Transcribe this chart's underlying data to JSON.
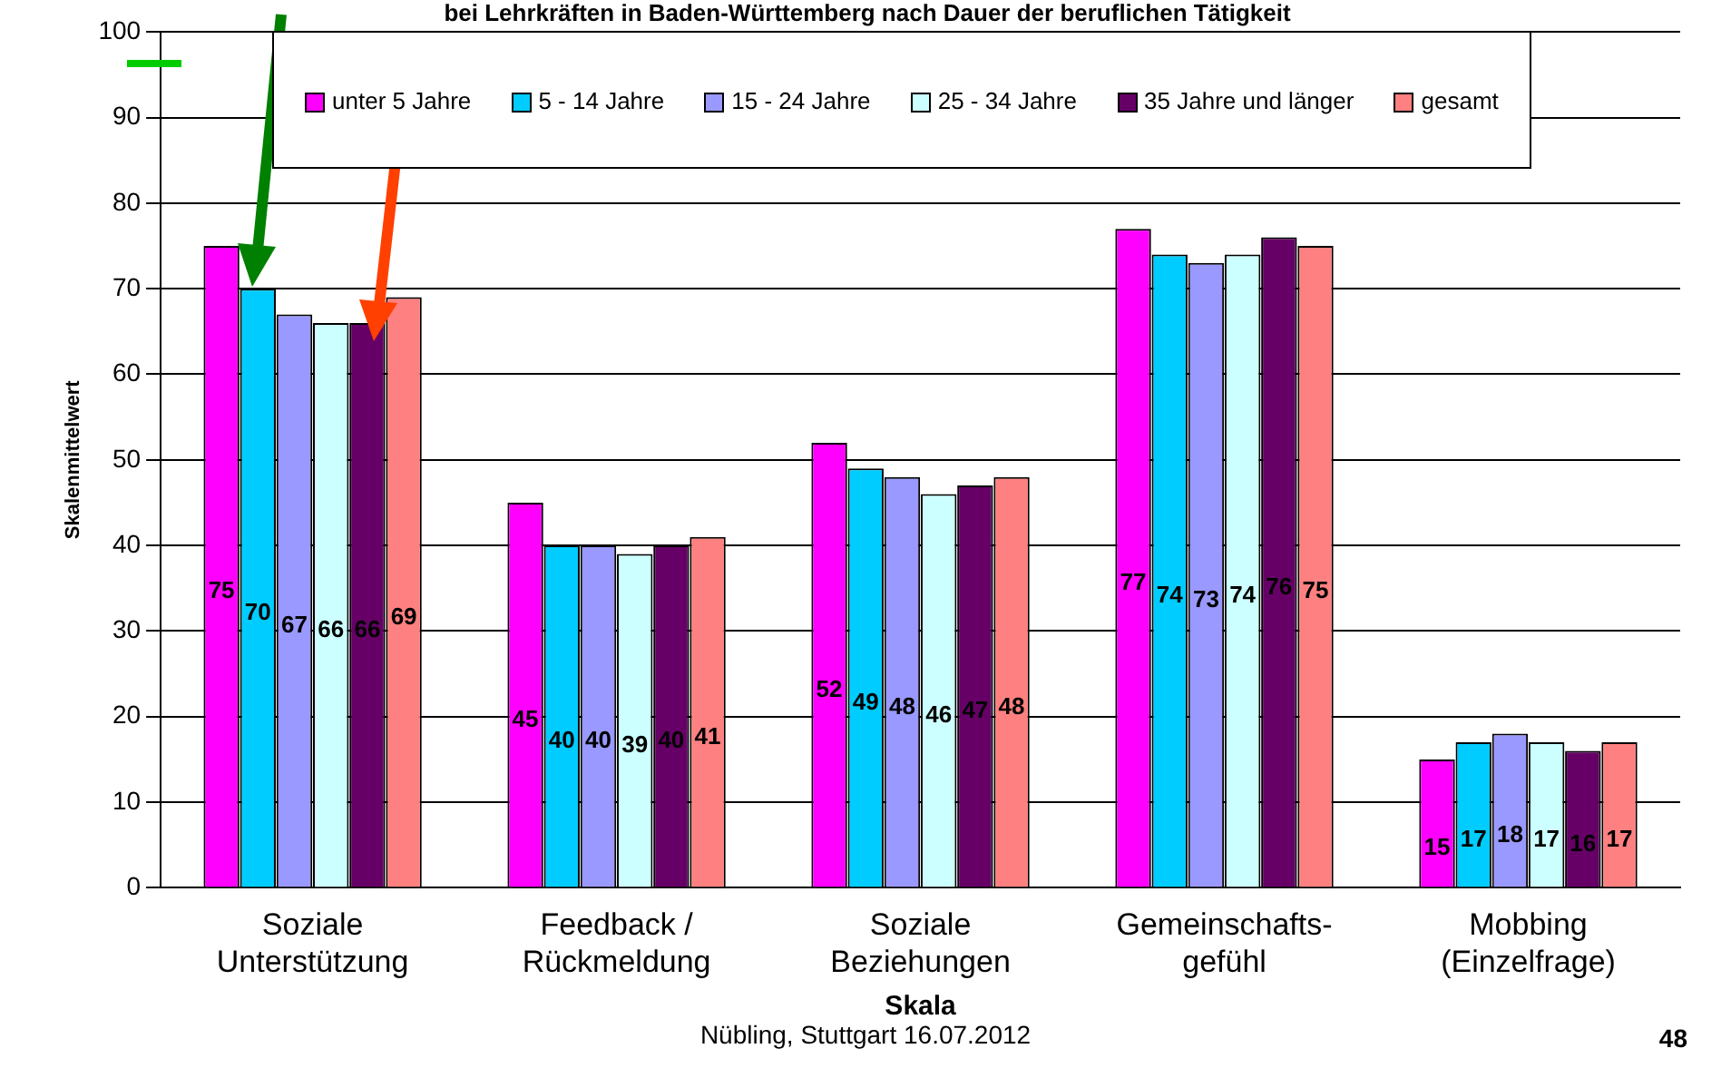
{
  "chart_data": {
    "type": "bar",
    "title": "bei Lehrkräften in Baden-Württemberg nach Dauer der beruflichen Tätigkeit",
    "xlabel": "Skala",
    "ylabel": "Skalenmittelwert",
    "categories": [
      "Soziale Unterstützung",
      "Feedback / Rückmeldung",
      "Soziale Beziehungen",
      "Gemeinschafts-gefühl",
      "Mobbing (Einzelfrage)"
    ],
    "series": [
      {
        "name": "unter 5 Jahre",
        "color": "#ff00ff",
        "values": [
          75,
          45,
          52,
          77,
          15
        ]
      },
      {
        "name": "5 - 14 Jahre",
        "color": "#00ccff",
        "values": [
          70,
          40,
          49,
          74,
          17
        ]
      },
      {
        "name": "15 - 24 Jahre",
        "color": "#9999ff",
        "values": [
          67,
          40,
          48,
          73,
          18
        ]
      },
      {
        "name": "25 - 34 Jahre",
        "color": "#ccffff",
        "values": [
          66,
          39,
          46,
          74,
          17
        ]
      },
      {
        "name": "35 Jahre und länger",
        "color": "#660066",
        "values": [
          66,
          40,
          47,
          76,
          16
        ]
      },
      {
        "name": "gesamt",
        "color": "#ff8080",
        "values": [
          69,
          41,
          48,
          75,
          17
        ]
      }
    ],
    "ylim": [
      0,
      100
    ],
    "yticks": [
      0,
      10,
      20,
      30,
      40,
      50,
      60,
      70,
      80,
      90,
      100
    ],
    "grid": "y",
    "legend": "top",
    "data_labels": true,
    "annotations": [
      "Nübling, Stuttgart 16.07.2012",
      "48"
    ]
  }
}
